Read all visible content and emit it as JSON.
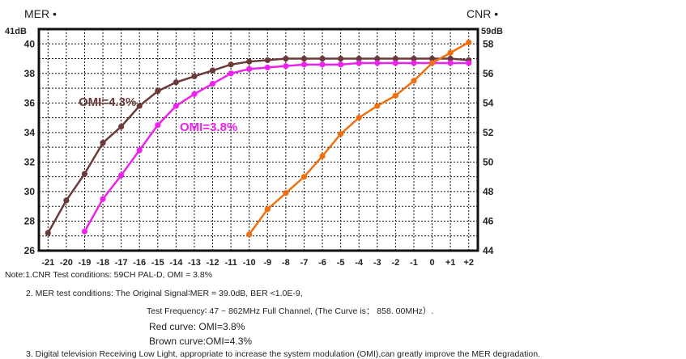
{
  "chart_data": {
    "type": "line",
    "left_axis_label": "MER •",
    "right_axis_label": "CNR •",
    "left_axis_unit_tick": "41dB",
    "right_axis_unit_tick": "59dB",
    "x_ticks": [
      "-21",
      "-20",
      "-19",
      "-18",
      "-17",
      "-16",
      "-15",
      "-14",
      "-13",
      "-12",
      "-11",
      "-10",
      "-9",
      "-8",
      "-7",
      "-6",
      "-5",
      "-4",
      "-3",
      "-2",
      "-1",
      "0",
      "+1",
      "+2"
    ],
    "y_left_ticks": [
      26,
      28,
      30,
      32,
      34,
      36,
      38,
      40
    ],
    "y_right_ticks": [
      44,
      46,
      48,
      50,
      52,
      54,
      56,
      58
    ],
    "y_left_range": [
      26,
      41
    ],
    "y_right_range": [
      44,
      59
    ],
    "grid": true,
    "series": [
      {
        "name": "OMI=4.3%",
        "axis": "left",
        "color": "#6b3a3a",
        "x": [
          -21,
          -20,
          -19,
          -18,
          -17,
          -16,
          -15,
          -14,
          -13,
          -12,
          -11,
          -10,
          -9,
          -8,
          -7,
          -6,
          -5,
          -4,
          -3,
          -2,
          -1,
          0,
          1,
          2
        ],
        "values": [
          27.2,
          29.4,
          31.2,
          33.3,
          34.4,
          35.8,
          36.8,
          37.4,
          37.8,
          38.2,
          38.6,
          38.8,
          38.9,
          39.0,
          39.0,
          39.0,
          39.0,
          39.0,
          39.0,
          39.0,
          39.0,
          39.0,
          39.0,
          38.9
        ]
      },
      {
        "name": "OMI=3.8%",
        "axis": "left",
        "color": "#ee22ee",
        "x": [
          -19,
          -18,
          -17,
          -16,
          -15,
          -14,
          -13,
          -12,
          -11,
          -10,
          -9,
          -8,
          -7,
          -6,
          -5,
          -4,
          -3,
          -2,
          -1,
          0,
          1,
          2
        ],
        "values": [
          27.3,
          29.5,
          31.1,
          32.8,
          34.5,
          35.8,
          36.6,
          37.3,
          38.0,
          38.3,
          38.4,
          38.5,
          38.6,
          38.6,
          38.6,
          38.7,
          38.7,
          38.7,
          38.7,
          38.7,
          38.7,
          38.7
        ]
      },
      {
        "name": "",
        "axis": "right",
        "color": "#f07010",
        "x": [
          -10,
          -9,
          -8,
          -7,
          -6,
          -5,
          -4,
          -3,
          -2,
          -1,
          0,
          1,
          2
        ],
        "values": [
          45.1,
          46.8,
          47.9,
          49.0,
          50.4,
          51.9,
          53.0,
          53.8,
          54.5,
          55.5,
          56.7,
          57.4,
          58.1
        ]
      }
    ],
    "annotations": [
      {
        "text": "OMI=4.3%",
        "color": "#6b3a3a"
      },
      {
        "text": "OMI=3.8%",
        "color": "#ee22ee"
      }
    ]
  },
  "notes": {
    "line1": "Note:1.CNR Test conditions: 59CH PAL-D, OMI = 3.8%",
    "line2": "2. MER test conditions: The Original Signal∶MER = 39.0dB, BER <1.0E-9,",
    "line3": "Test Frequency∶ 47 ~ 862MHz Full Channel, (The Curve is： 858. 00MHz）.",
    "line4": "Red curve: OMI=3.8%",
    "line5": "Brown curve:OMI=4.3%",
    "line6": "3. Digital television Receiving Low Light, appropriate to increase the system modulation (OMI),can greatly improve the MER degradation."
  }
}
